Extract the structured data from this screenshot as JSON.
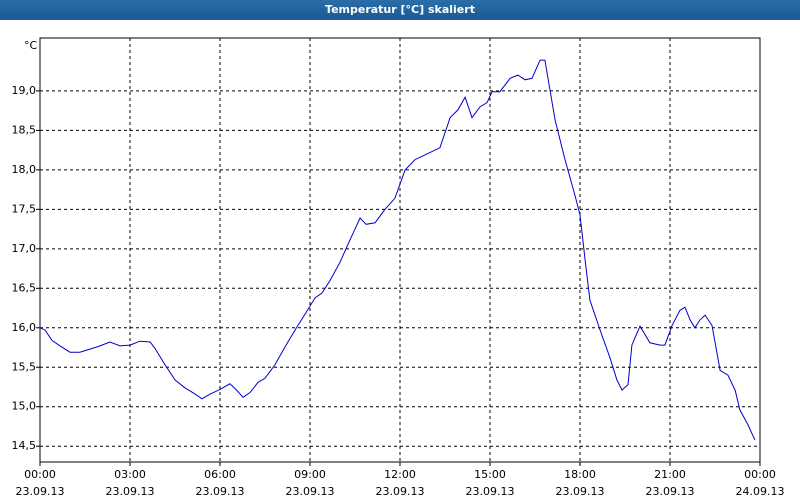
{
  "chart_data": {
    "type": "line",
    "title": "Temperatur [°C] skaliert",
    "y_label": "°C",
    "xlim": [
      0,
      24
    ],
    "ylim": [
      14.3,
      19.67
    ],
    "xticks": [
      {
        "value": 0,
        "label": "00:00\n23.09.13"
      },
      {
        "value": 3,
        "label": "03:00\n23.09.13"
      },
      {
        "value": 6,
        "label": "06:00\n23.09.13"
      },
      {
        "value": 9,
        "label": "09:00\n23.09.13"
      },
      {
        "value": 12,
        "label": "12:00\n23.09.13"
      },
      {
        "value": 15,
        "label": "15:00\n23.09.13"
      },
      {
        "value": 18,
        "label": "18:00\n23.09.13"
      },
      {
        "value": 21,
        "label": "21:00\n23.09.13"
      },
      {
        "value": 24,
        "label": "00:00\n24.09.13"
      }
    ],
    "yticks": [
      {
        "value": 14.5,
        "label": "14,5"
      },
      {
        "value": 15.0,
        "label": "15,0"
      },
      {
        "value": 15.5,
        "label": "15,5"
      },
      {
        "value": 16.0,
        "label": "16,0"
      },
      {
        "value": 16.5,
        "label": "16,5"
      },
      {
        "value": 17.0,
        "label": "17,0"
      },
      {
        "value": 17.5,
        "label": "17,5"
      },
      {
        "value": 18.0,
        "label": "18,0"
      },
      {
        "value": 18.5,
        "label": "18,5"
      },
      {
        "value": 19.0,
        "label": "19,0"
      }
    ],
    "grid": true,
    "x": [
      0,
      0.17,
      0.4,
      0.67,
      1.0,
      1.33,
      1.67,
      2.0,
      2.33,
      2.67,
      3.0,
      3.33,
      3.67,
      3.83,
      4.17,
      4.5,
      4.83,
      5.17,
      5.4,
      5.67,
      6.0,
      6.33,
      6.53,
      6.77,
      7.0,
      7.27,
      7.5,
      7.83,
      8.17,
      8.5,
      8.83,
      9.17,
      9.4,
      9.67,
      10.0,
      10.33,
      10.67,
      10.87,
      11.17,
      11.5,
      11.83,
      12.17,
      12.5,
      12.83,
      13.33,
      13.67,
      13.93,
      14.17,
      14.4,
      14.67,
      14.9,
      15.07,
      15.33,
      15.67,
      15.93,
      16.17,
      16.4,
      16.67,
      16.83,
      17.17,
      17.5,
      17.83,
      18.0,
      18.17,
      18.33,
      18.67,
      19.0,
      19.23,
      19.4,
      19.6,
      19.73,
      20.0,
      20.33,
      20.67,
      20.83,
      21.07,
      21.33,
      21.5,
      21.67,
      21.83,
      22.0,
      22.17,
      22.4,
      22.67,
      22.93,
      23.17,
      23.33,
      23.6,
      23.83
    ],
    "series": [
      {
        "name": "Temperatur",
        "color": "#0000cc",
        "values": [
          16.0,
          15.97,
          15.84,
          15.77,
          15.69,
          15.69,
          15.73,
          15.77,
          15.82,
          15.77,
          15.78,
          15.83,
          15.82,
          15.74,
          15.53,
          15.34,
          15.24,
          15.16,
          15.1,
          15.16,
          15.22,
          15.29,
          15.22,
          15.12,
          15.18,
          15.31,
          15.36,
          15.53,
          15.76,
          15.97,
          16.17,
          16.38,
          16.44,
          16.6,
          16.83,
          17.11,
          17.39,
          17.31,
          17.33,
          17.5,
          17.64,
          18.0,
          18.13,
          18.19,
          18.28,
          18.66,
          18.76,
          18.92,
          18.66,
          18.8,
          18.85,
          18.99,
          18.99,
          19.16,
          19.2,
          19.14,
          19.16,
          19.39,
          19.39,
          18.63,
          18.13,
          17.68,
          17.43,
          16.86,
          16.35,
          15.97,
          15.62,
          15.34,
          15.21,
          15.28,
          15.78,
          16.02,
          15.81,
          15.78,
          15.78,
          16.03,
          16.22,
          16.26,
          16.1,
          16.0,
          16.1,
          16.16,
          16.03,
          15.46,
          15.4,
          15.21,
          14.96,
          14.77,
          14.58
        ]
      }
    ]
  }
}
